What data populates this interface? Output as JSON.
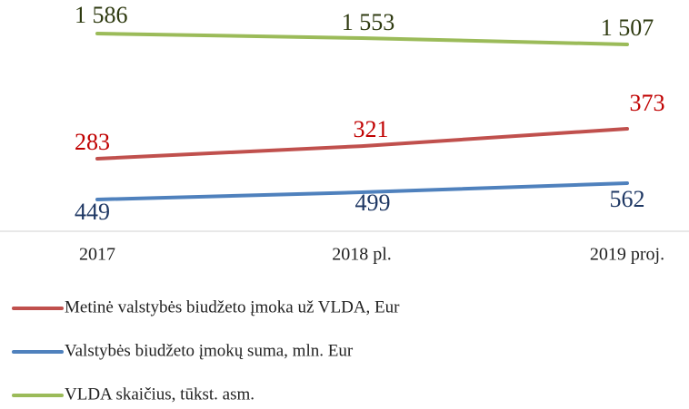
{
  "chart_data": {
    "type": "line",
    "categories": [
      "2017",
      "2018 pl.",
      "2019 proj."
    ],
    "series": [
      {
        "name": "Metinė valstybės biudžeto įmoka už VLDA, Eur",
        "color": "#c0504d",
        "label_color": "#c00000",
        "values": [
          283,
          321,
          373
        ]
      },
      {
        "name": "Valstybės biudžeto įmokų suma, mln. Eur",
        "color": "#4f81bd",
        "label_color": "#1f3864",
        "values": [
          449,
          499,
          562
        ]
      },
      {
        "name": "VLDA skaičius, tūkst. asm.",
        "color": "#9bbb59",
        "label_color": "#2e3a10",
        "values": [
          1586,
          1553,
          1507
        ],
        "value_labels": [
          "1 586",
          "1 553",
          "1 507"
        ]
      }
    ]
  }
}
